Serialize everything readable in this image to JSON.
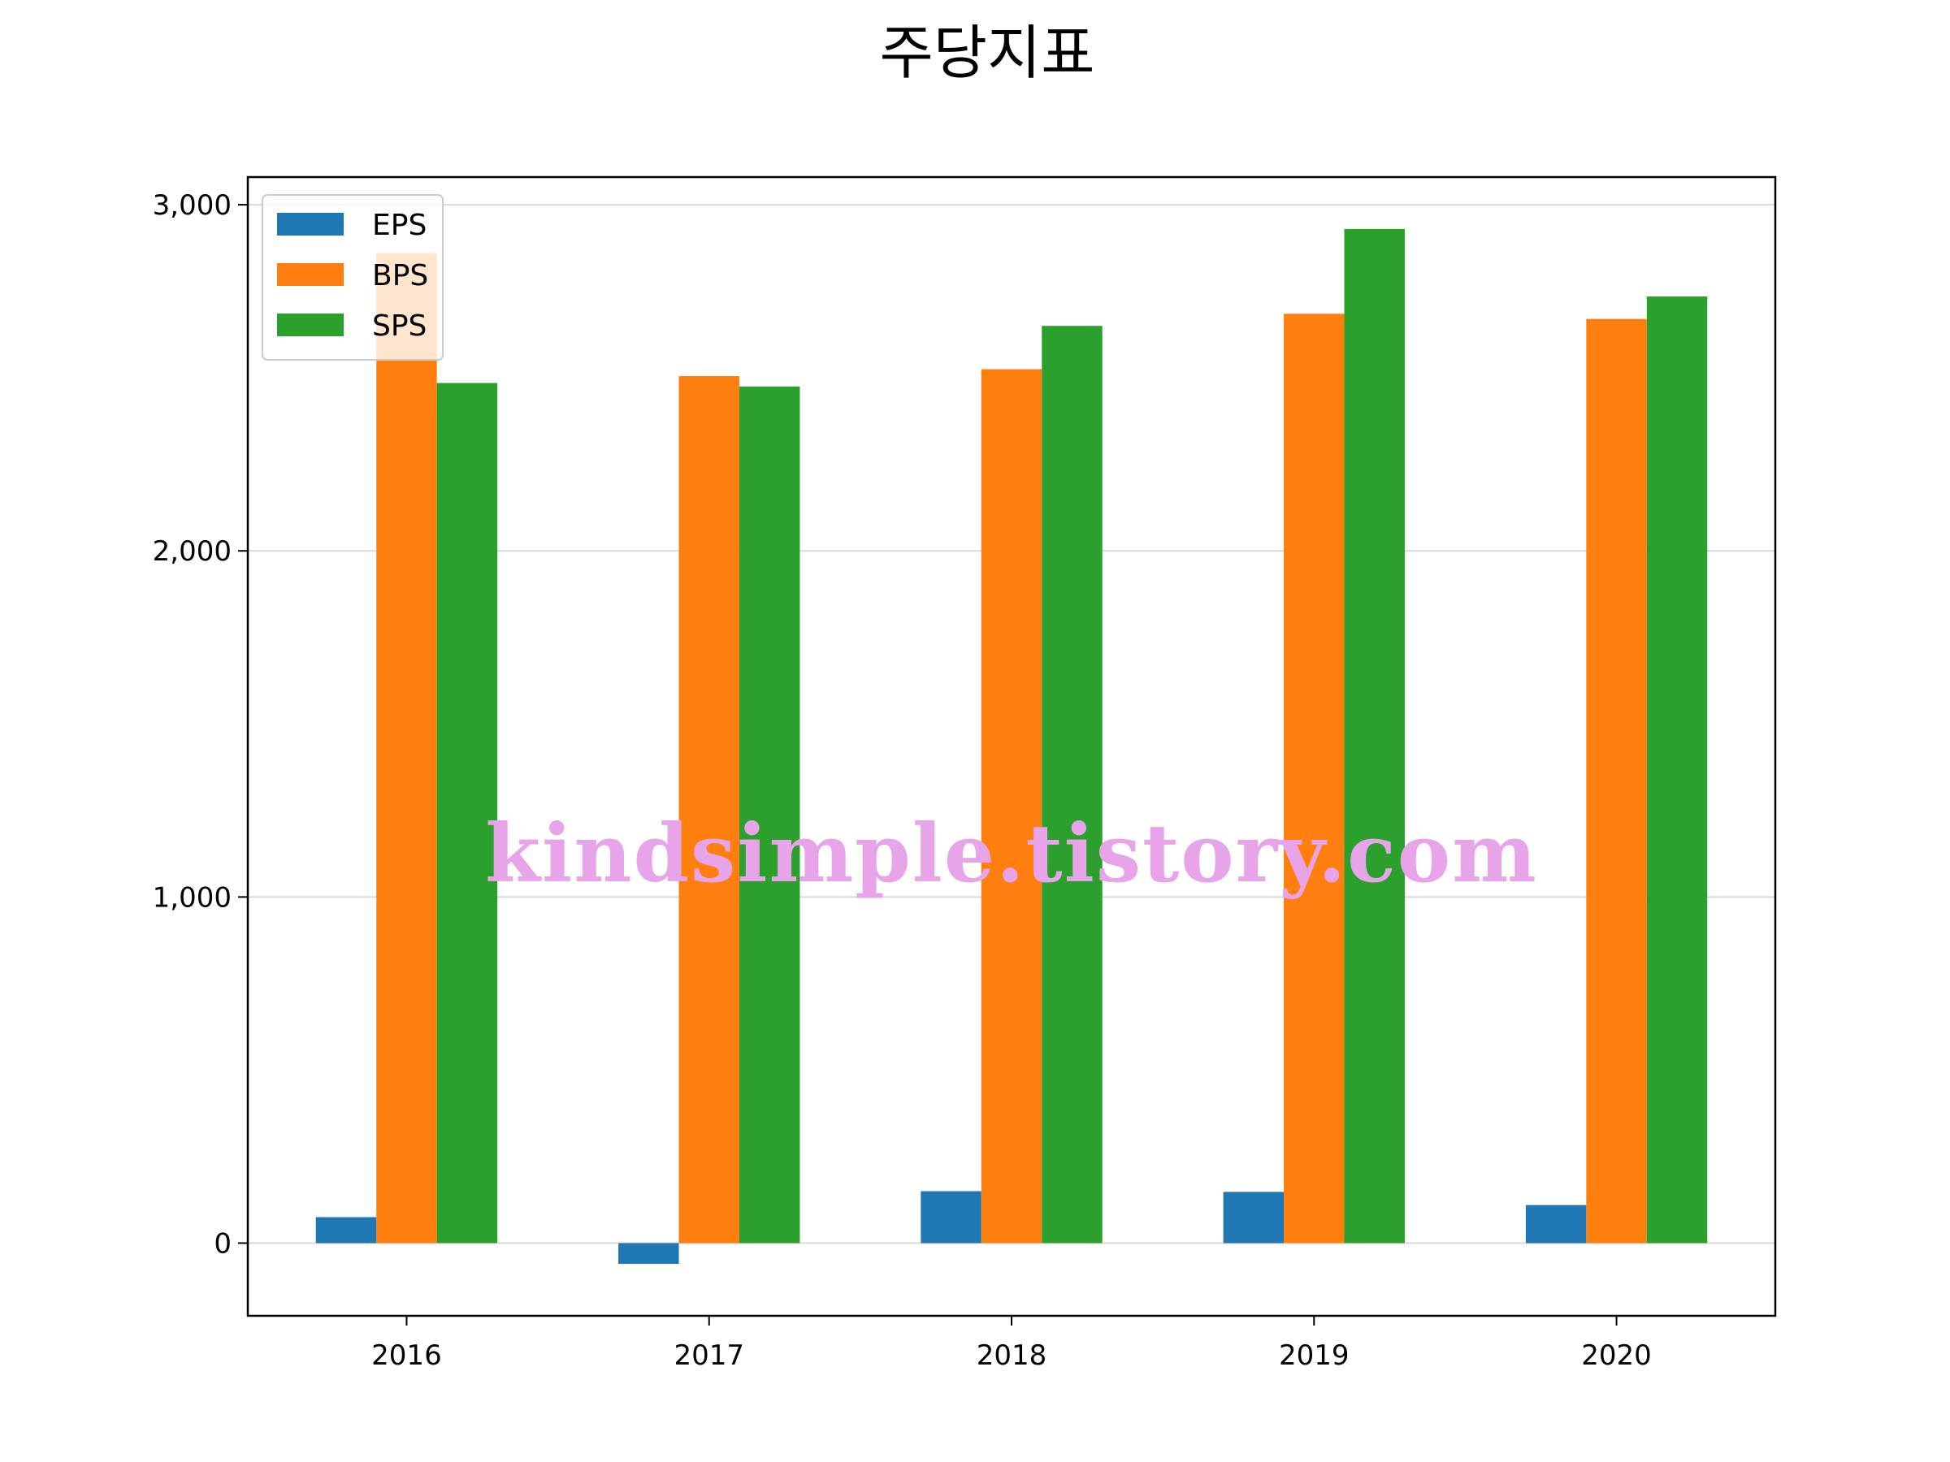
{
  "chart_data": {
    "type": "bar",
    "title": "주당지표",
    "categories": [
      "2016",
      "2017",
      "2018",
      "2019",
      "2020"
    ],
    "series": [
      {
        "name": "EPS",
        "color": "#1f77b4",
        "values": [
          75,
          -60,
          150,
          148,
          110
        ]
      },
      {
        "name": "BPS",
        "color": "#ff7f0e",
        "values": [
          2860,
          2505,
          2525,
          2685,
          2670
        ]
      },
      {
        "name": "SPS",
        "color": "#2ca02c",
        "values": [
          2485,
          2475,
          2650,
          2930,
          2735
        ]
      }
    ],
    "ylim": [
      -210,
      3080
    ],
    "yticks": [
      0,
      1000,
      2000,
      3000
    ],
    "ytick_labels": [
      "0",
      "1,000",
      "2,000",
      "3,000"
    ],
    "grid": "horizontal",
    "legend": "top-left",
    "xlabel": "",
    "ylabel": ""
  },
  "watermark": "kindsimple.tistory.com"
}
